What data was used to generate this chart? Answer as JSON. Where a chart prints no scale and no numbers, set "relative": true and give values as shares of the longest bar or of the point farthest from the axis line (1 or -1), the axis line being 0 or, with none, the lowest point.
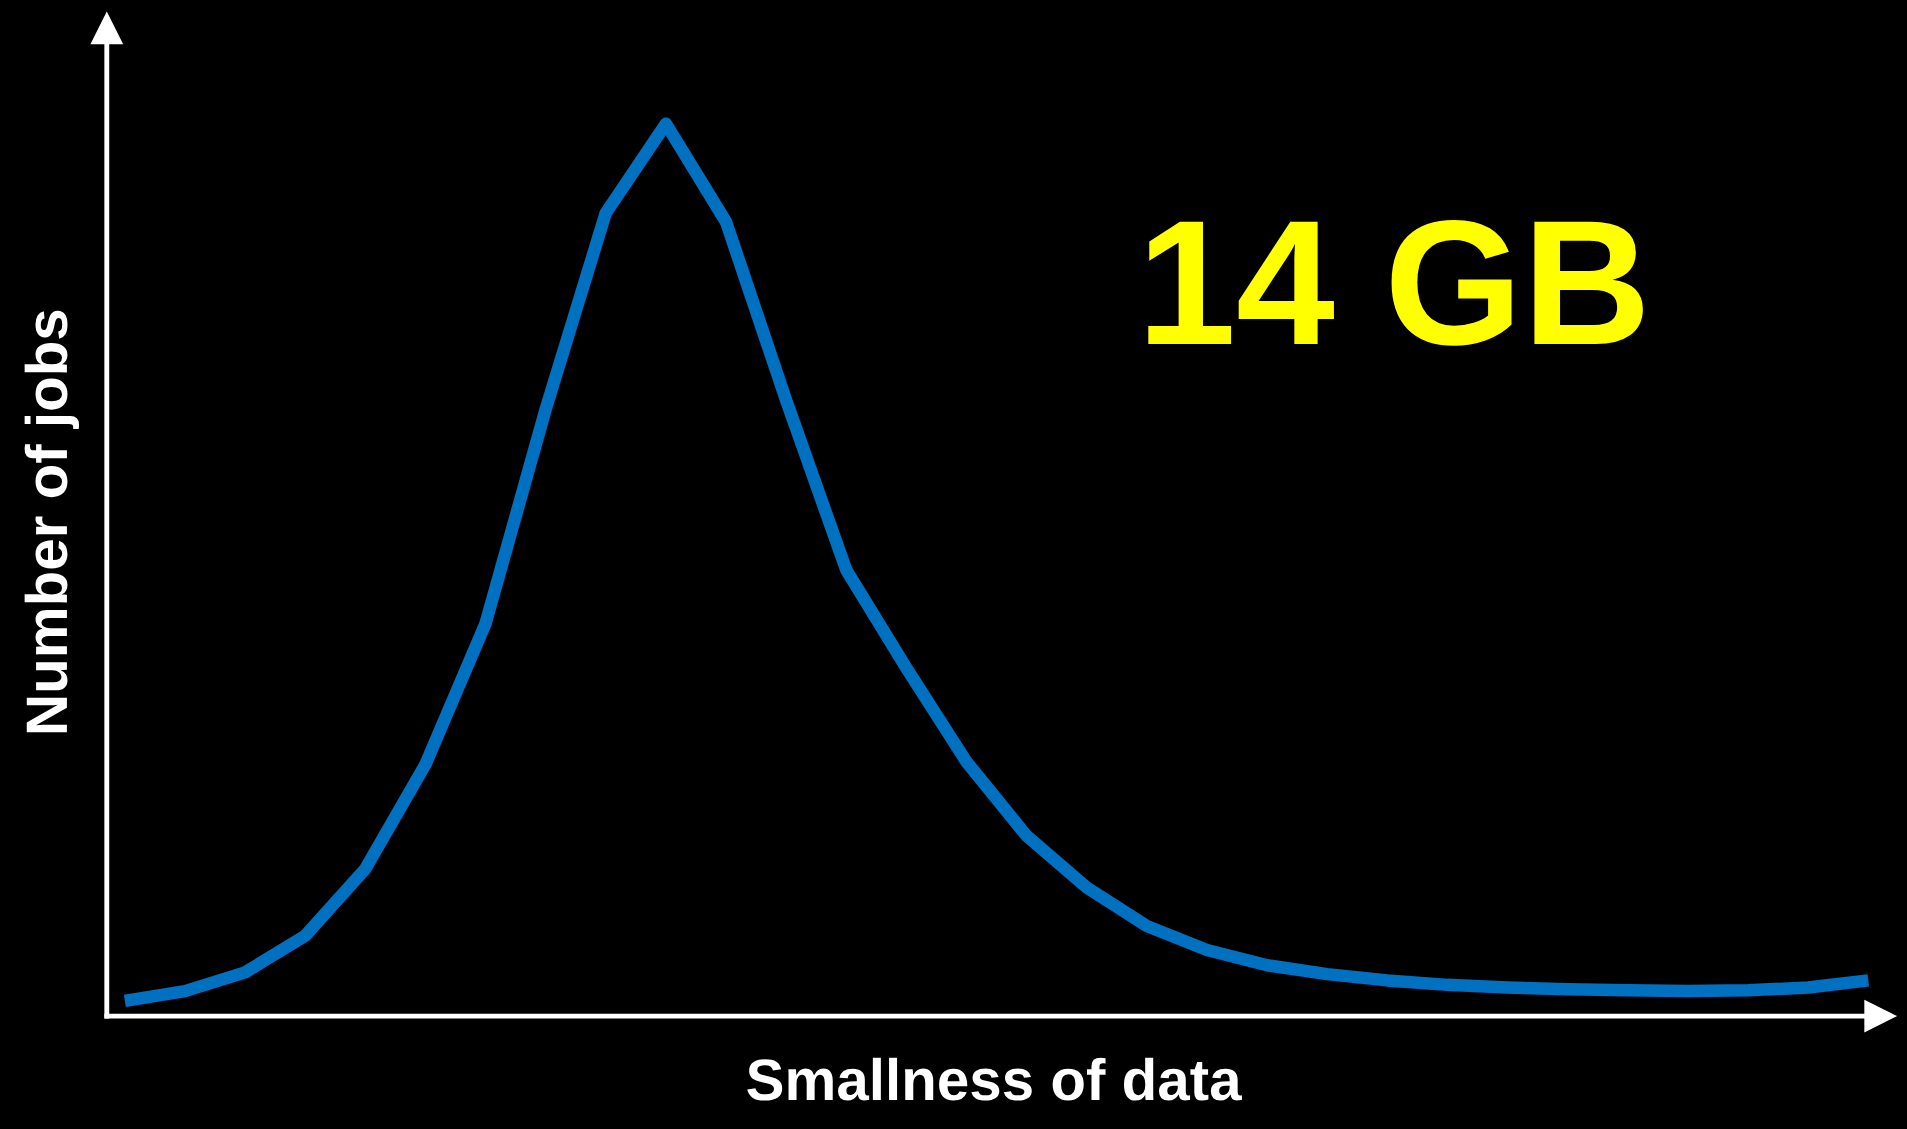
{
  "chart_data": {
    "type": "line",
    "relative": true,
    "xlabel": "Smallness of data",
    "ylabel": "Number of jobs",
    "annotations": [
      "14 GB"
    ],
    "categories": [
      null,
      null,
      null,
      null,
      null,
      null,
      null,
      null,
      null,
      null,
      null,
      null,
      null,
      null,
      null,
      null,
      null,
      null,
      null,
      null,
      null,
      null,
      null,
      null,
      null,
      null,
      null,
      null,
      null,
      null
    ],
    "series": [
      {
        "color": "#0070c0",
        "values": [
          0.017,
          0.028,
          0.049,
          0.09,
          0.165,
          0.282,
          0.44,
          0.68,
          0.9,
          1.0,
          0.89,
          0.69,
          0.5,
          0.39,
          0.285,
          0.202,
          0.144,
          0.101,
          0.074,
          0.057,
          0.047,
          0.04,
          0.035,
          0.032,
          0.03,
          0.029,
          0.028,
          0.029,
          0.032,
          0.04
        ]
      }
    ],
    "grid": false,
    "tick_labels": false,
    "marker": "none",
    "line_style": "solid"
  }
}
